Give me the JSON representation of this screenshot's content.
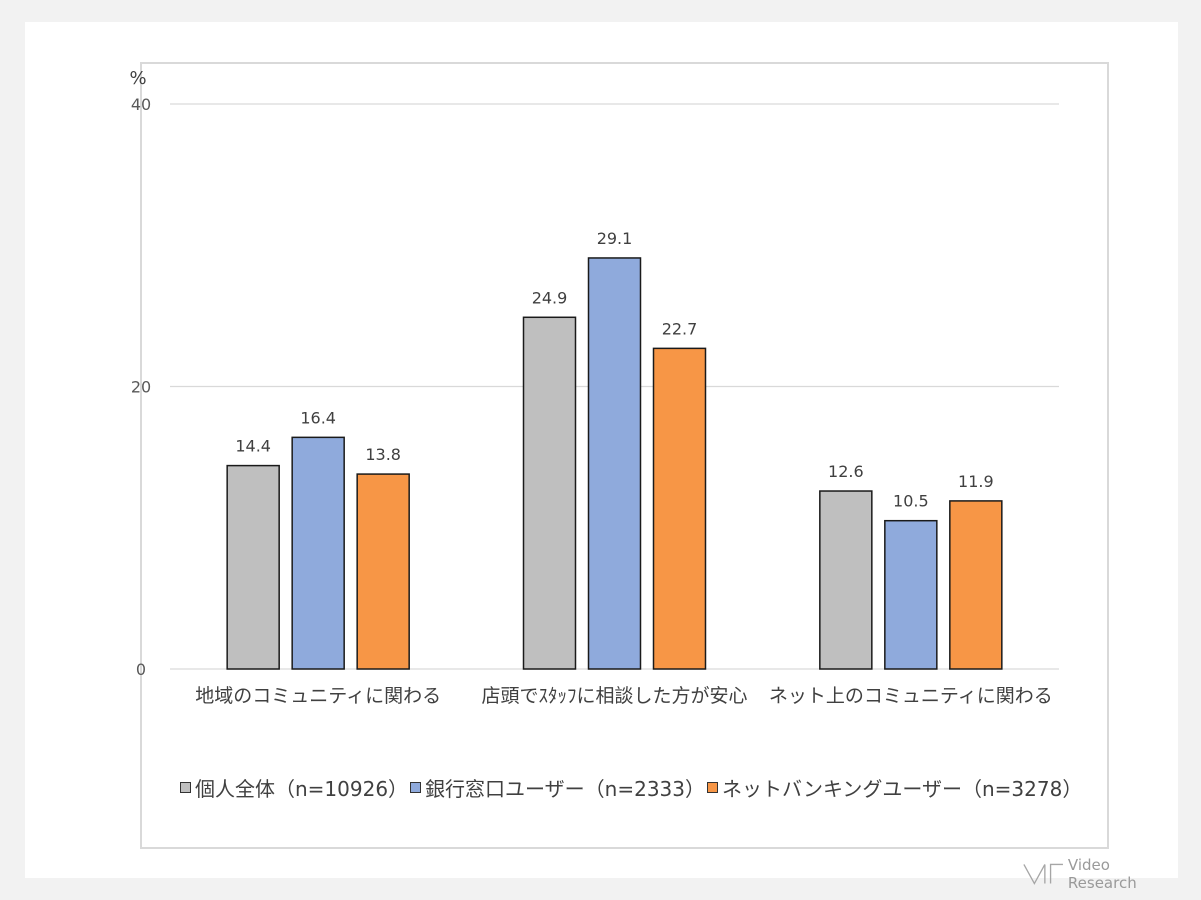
{
  "chart_data": {
    "type": "bar",
    "unit": "%",
    "ylim": [
      0,
      40
    ],
    "yticks": [
      0,
      20,
      40
    ],
    "grid": true,
    "legend_position": "bottom",
    "categories": [
      "地域のコミュニティに関わる",
      "店頭でｽﾀｯﾌに相談した方が安心",
      "ネット上のコミュニティに関わる"
    ],
    "series": [
      {
        "name": "個人全体（n=10926）",
        "color": "#bfbfbf",
        "values": [
          14.4,
          24.9,
          12.6
        ],
        "labels": [
          "14.4",
          "24.9",
          "12.6"
        ]
      },
      {
        "name": "銀行窓口ユーザー（n=2333）",
        "color": "#8faadc",
        "values": [
          16.4,
          29.1,
          10.5
        ],
        "labels": [
          "16.4",
          "29.1",
          "10.5"
        ]
      },
      {
        "name": "ネットバンキングユーザー（n=3278）",
        "color": "#f79646",
        "values": [
          13.8,
          22.7,
          11.9
        ],
        "labels": [
          "13.8",
          "22.7",
          "11.9"
        ]
      }
    ]
  },
  "brand": {
    "name": "Video Research"
  }
}
